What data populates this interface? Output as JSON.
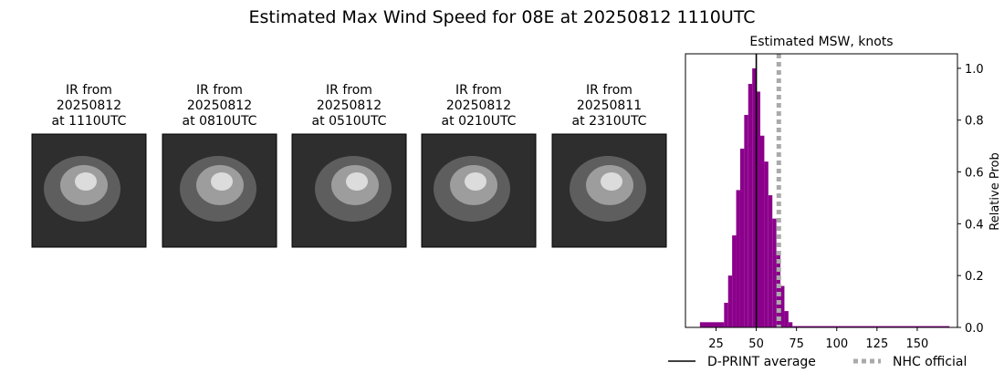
{
  "title": "Estimated Max Wind Speed for 08E at 20250812 1110UTC",
  "panels": [
    {
      "lines": [
        "IR from",
        "20250812",
        "at 1110UTC"
      ]
    },
    {
      "lines": [
        "IR from",
        "20250812",
        "at 0810UTC"
      ]
    },
    {
      "lines": [
        "IR from",
        "20250812",
        "at 0510UTC"
      ]
    },
    {
      "lines": [
        "IR from",
        "20250812",
        "at 0210UTC"
      ]
    },
    {
      "lines": [
        "IR from",
        "20250811",
        "at 2310UTC"
      ]
    }
  ],
  "chart_data": {
    "type": "histogram",
    "title": "Estimated MSW, knots",
    "ylabel": "Relative Prob",
    "bins": [
      15,
      30,
      32.5,
      35,
      37.5,
      40,
      42.5,
      45,
      47.5,
      50,
      52.5,
      55,
      57.5,
      60,
      62.5,
      65,
      67.5,
      70,
      72.5,
      170
    ],
    "values": [
      0.02,
      0.095,
      0.2,
      0.355,
      0.53,
      0.69,
      0.82,
      0.94,
      1.0,
      0.91,
      0.74,
      0.64,
      0.51,
      0.42,
      0.28,
      0.16,
      0.063,
      0.02,
      0.005
    ],
    "color": "#8b008b",
    "xlim": [
      6,
      175
    ],
    "xticks": [
      25,
      50,
      75,
      100,
      125,
      150
    ],
    "ylim": [
      0,
      1.056
    ],
    "yticks": [
      {
        "value": 0,
        "label": "0.0"
      },
      0.2,
      0.4,
      0.6,
      0.8,
      {
        "value": 1,
        "label": "1.0"
      }
    ],
    "reference_lines": [
      {
        "name": "D-PRINT average",
        "value": 50,
        "color": "#000000",
        "style": "solid"
      },
      {
        "name": "NHC official",
        "value": 64,
        "color": "#aaaaaa",
        "style": "dotted"
      }
    ]
  }
}
